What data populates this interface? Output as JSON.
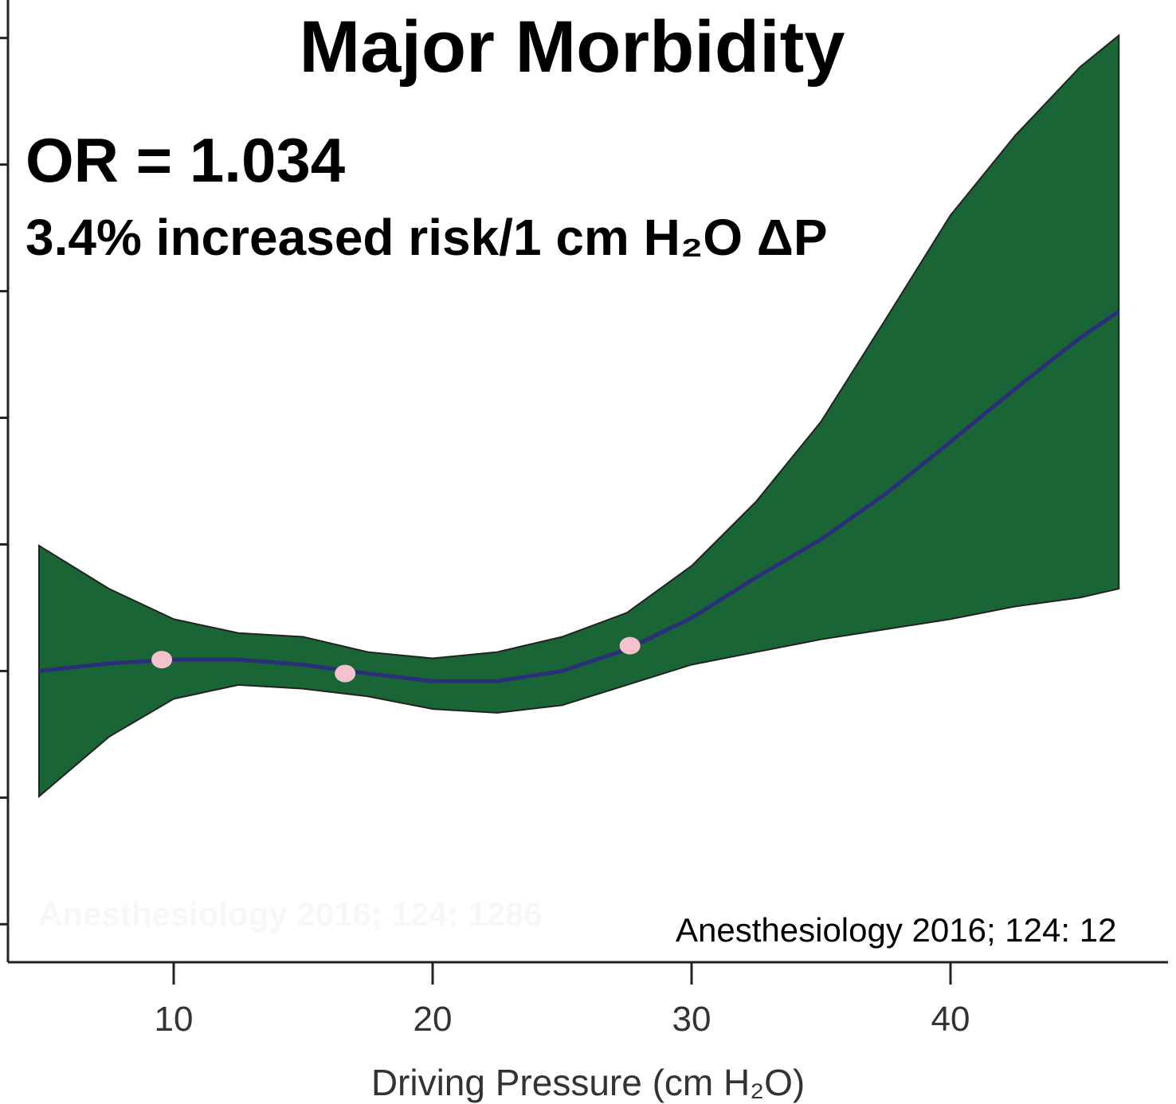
{
  "chart_data": {
    "type": "line",
    "title": "Major Morbidity",
    "annotations": [
      "OR = 1.034",
      "3.4% increased risk/1 cm H₂O ΔP",
      "Anesthesiology 2016; 124: 12",
      "Anesthesiology 2016; 124: 1286"
    ],
    "xlabel": "Driving Pressure (cm H₂O)",
    "x": [
      4.8,
      7.5,
      10,
      12.5,
      15,
      17.5,
      20,
      22.5,
      25,
      27.5,
      30,
      32.5,
      35,
      37.5,
      40,
      42.5,
      45,
      46.5
    ],
    "values": [
      2.0,
      2.06,
      2.09,
      2.09,
      2.05,
      1.98,
      1.92,
      1.92,
      2.0,
      2.17,
      2.42,
      2.74,
      3.04,
      3.4,
      3.81,
      4.23,
      4.63,
      4.84
    ],
    "upper": [
      2.99,
      2.65,
      2.41,
      2.3,
      2.27,
      2.15,
      2.1,
      2.15,
      2.27,
      2.46,
      2.83,
      3.34,
      3.97,
      4.78,
      5.6,
      6.23,
      6.77,
      7.02
    ],
    "lower": [
      1.01,
      1.48,
      1.78,
      1.89,
      1.86,
      1.8,
      1.7,
      1.67,
      1.73,
      1.89,
      2.05,
      2.15,
      2.25,
      2.33,
      2.41,
      2.51,
      2.58,
      2.65
    ],
    "points": {
      "x": [
        9.54,
        16.62,
        27.62
      ],
      "values": [
        2.09,
        1.98,
        2.2
      ],
      "color": "#f4c2cc"
    },
    "line_color": "#2b2f7a",
    "band_color": "#196535",
    "xlim": [
      3.6,
      48.4
    ],
    "ylim": [
      -0.3,
      7.3
    ],
    "xticks": [
      10,
      20,
      30,
      40
    ],
    "yticks": [
      0,
      1,
      2,
      3,
      4,
      5,
      6,
      7
    ]
  }
}
